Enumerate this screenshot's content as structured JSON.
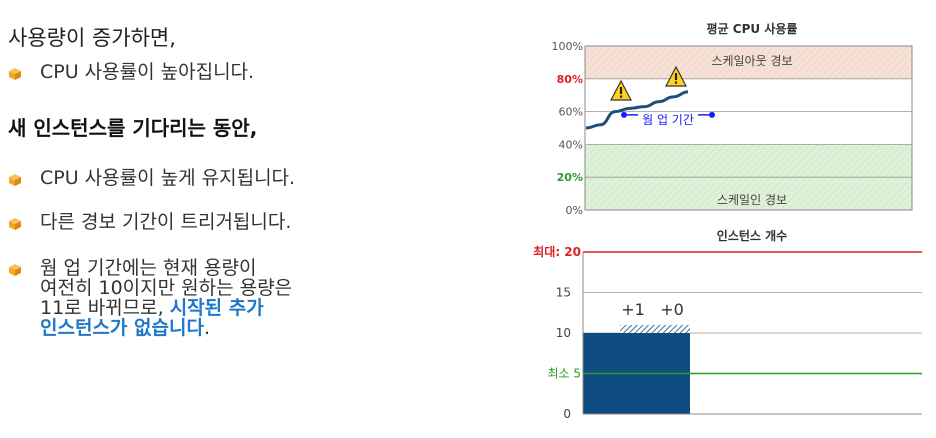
{
  "left_text": {
    "line1": "사용량이 증가하면,",
    "bullet1": "CPU 사용률이 높아집니다.",
    "heading": "새 인스턴스를 기다리는 동안,",
    "bullet2": "CPU 사용률이 높게 유지됩니다.",
    "bullet3": "다른 경보 기간이 트리거됩니다.",
    "bullet4_line1": "웜 업 기간에는 현재 용량이",
    "bullet4_line2": "여전히 10이지만 원하는 용량은",
    "bullet4_line3_plain": "11로 바뀌므로, ",
    "bullet4_line3_hl": "시작된 추가",
    "bullet4_line4_hl": "인스턴스가 없습니다",
    "bullet4_line4_end": "."
  },
  "colors": {
    "bullet_orange": "#f5a623",
    "highlight_blue": "#1f77c9",
    "scaleout_zone": "#f6e1d6",
    "scalein_zone": "#dff1d8",
    "max_red": "#e02020",
    "min_green": "#2a9d2a",
    "instance_bar": "#0f4c81",
    "warmup_blue": "#1a1aff"
  },
  "chart_data": [
    {
      "type": "line",
      "title": "평균 CPU 사용률",
      "ylim": [
        0,
        100
      ],
      "y_ticks": [
        "0%",
        "20%",
        "40%",
        "60%",
        "80%",
        "100%"
      ],
      "y_tick_values": [
        0,
        20,
        40,
        60,
        80,
        100
      ],
      "highlighted_ticks": {
        "80%": "red",
        "20%": "green"
      },
      "zones": [
        {
          "label": "스케일아웃 경보",
          "from": 80,
          "to": 100
        },
        {
          "label": "스케일인 경보",
          "from": 0,
          "to": 40
        }
      ],
      "series": [
        {
          "values": [
            50,
            52,
            60,
            62,
            63,
            66,
            69,
            72
          ]
        }
      ],
      "warmup_label": "웜 업 기간",
      "warmup_level": 58,
      "grid": true
    },
    {
      "type": "bar",
      "title": "인스턴스 개수",
      "ylim": [
        0,
        20
      ],
      "y_ticks": [
        "0",
        "5",
        "10",
        "15",
        "20"
      ],
      "max_label": "최대: 20",
      "min_label": "최소 5",
      "bar_value": 10,
      "pending_value": 1,
      "bar_annotations": [
        "+1",
        "+0"
      ]
    }
  ]
}
